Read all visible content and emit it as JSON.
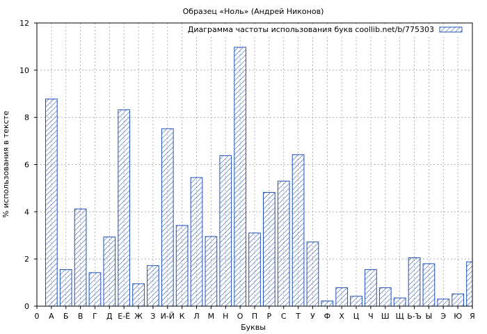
{
  "chart_data": {
    "type": "bar",
    "title": "Образец «Ноль» (Андрей Никонов)",
    "xlabel": "Буквы",
    "ylabel": "% использования в тексте",
    "ylim": [
      0,
      12
    ],
    "yticks": [
      "0",
      "2",
      "4",
      "6",
      "8",
      "10",
      "12"
    ],
    "grid": true,
    "legend_position": "top-right",
    "categories": [
      "0",
      "А",
      "Б",
      "В",
      "Г",
      "Д",
      "Е-Ё",
      "Ж",
      "З",
      "И-Й",
      "К",
      "Л",
      "М",
      "Н",
      "О",
      "П",
      "Р",
      "С",
      "Т",
      "У",
      "Ф",
      "Х",
      "Ц",
      "Ч",
      "Ш",
      "Щ",
      "Ь-Ъ",
      "Ы",
      "Э",
      "Ю",
      "Я"
    ],
    "series": [
      {
        "name": "Диаграмма частоты использования букв coollib.net/b/775303",
        "values": [
          0,
          8.78,
          1.55,
          4.12,
          1.42,
          2.93,
          8.32,
          0.95,
          1.72,
          7.52,
          3.42,
          5.45,
          2.95,
          6.38,
          10.97,
          3.1,
          4.82,
          5.3,
          6.42,
          2.72,
          0.22,
          0.78,
          0.42,
          1.55,
          0.78,
          0.35,
          2.05,
          1.8,
          0.3,
          0.52,
          1.88
        ]
      }
    ],
    "colors": {
      "bar_stroke": "#1f4fb4",
      "hatch": "#1f4fb4",
      "grid": "#a0a0a0"
    }
  }
}
